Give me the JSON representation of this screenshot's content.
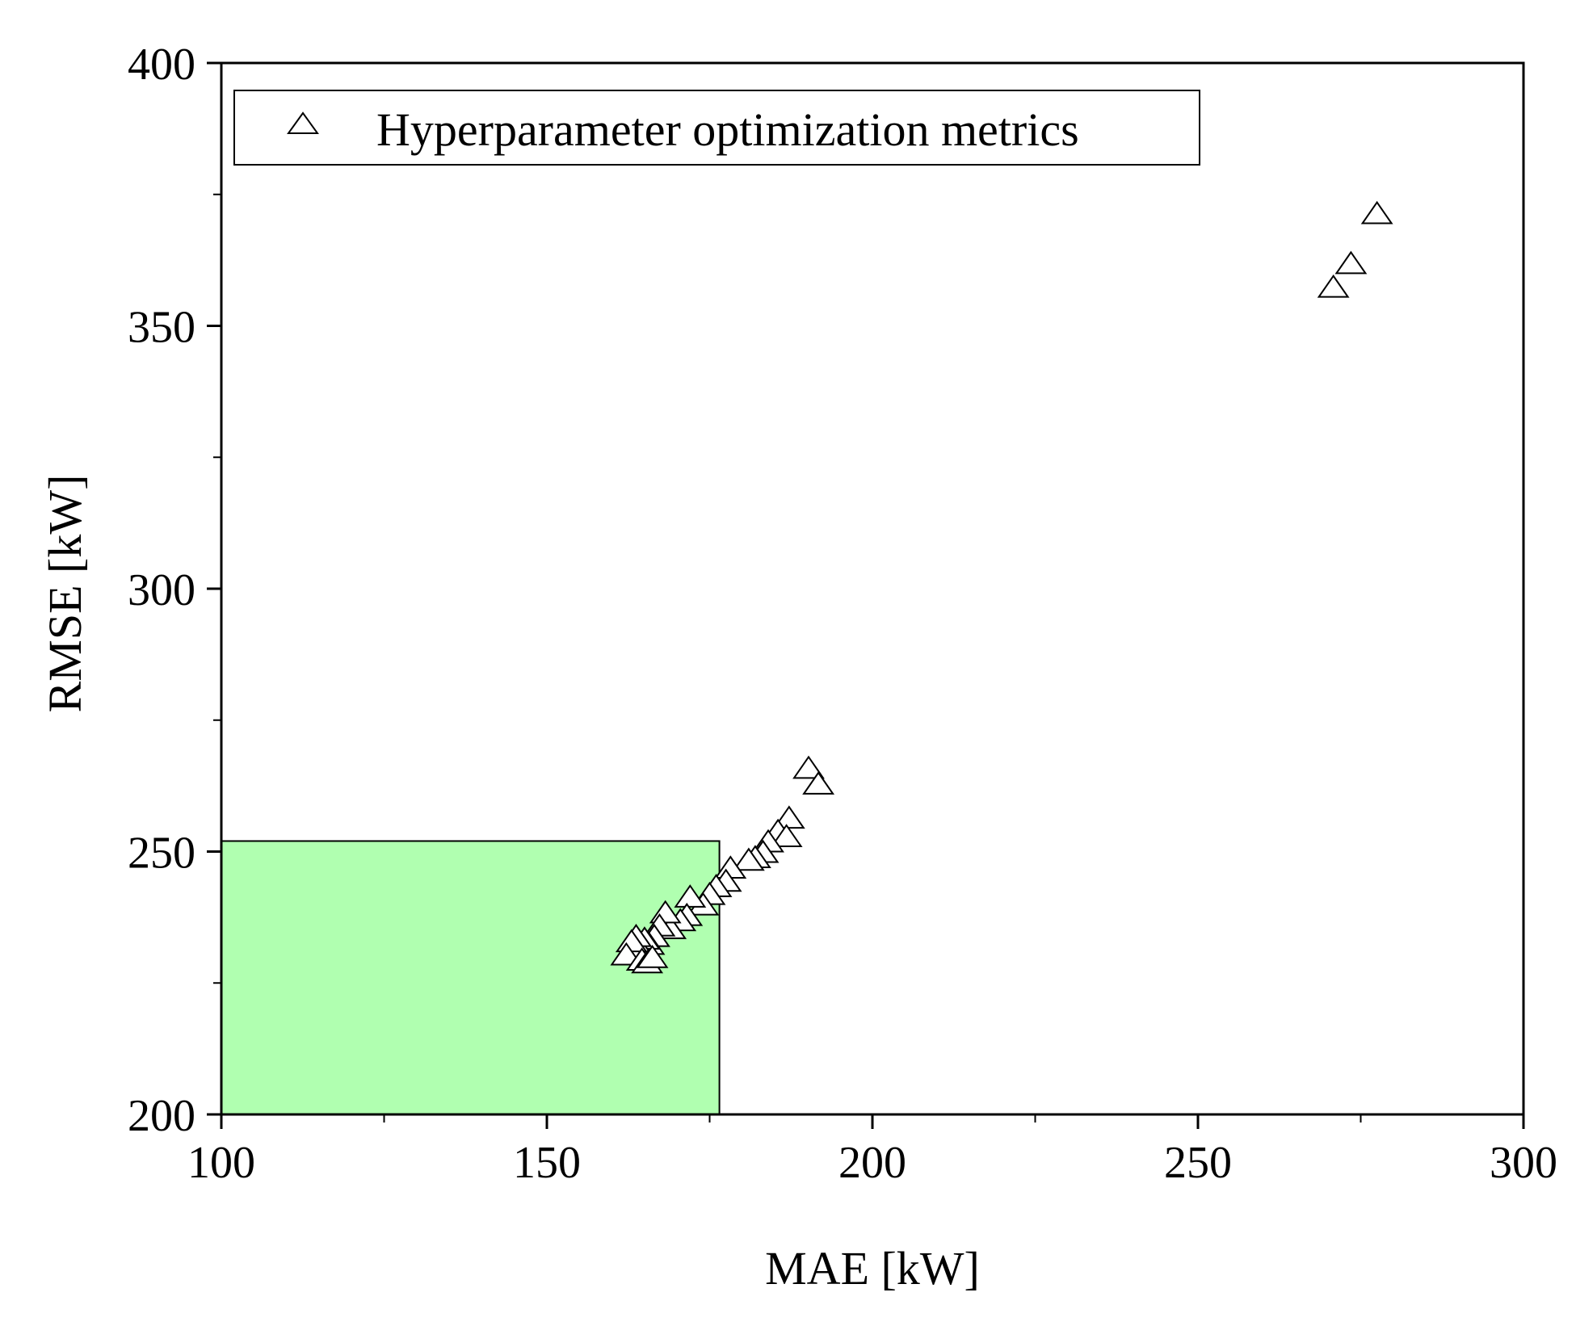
{
  "colors": {
    "axis": "#000000",
    "background": "#ffffff",
    "region_fill": "#b0ffb0",
    "marker_stroke": "#000000",
    "marker_fill": "#ffffff"
  },
  "chart_data": {
    "type": "scatter",
    "title": "",
    "xlabel": "MAE [kW]",
    "ylabel": "RMSE [kW]",
    "xlim": [
      100,
      300
    ],
    "ylim": [
      200,
      400
    ],
    "x_ticks": [
      100,
      150,
      200,
      250,
      300
    ],
    "x_tick_labels": [
      "100",
      "150",
      "200",
      "250",
      "300"
    ],
    "x_minor_ticks": [
      125,
      175,
      225,
      275
    ],
    "y_ticks": [
      200,
      250,
      300,
      350,
      400
    ],
    "y_tick_labels": [
      "200",
      "250",
      "300",
      "350",
      "400"
    ],
    "y_minor_ticks": [
      225,
      275,
      325,
      375
    ],
    "grid": false,
    "legend_position": "top-left",
    "highlight_region": {
      "x": [
        100,
        176.5
      ],
      "y": [
        200,
        252
      ]
    },
    "series": [
      {
        "name": "Hyperparameter optimization metrics",
        "marker": "triangle-open",
        "x": [
          277.5,
          273.5,
          270.8,
          190.2,
          191.7,
          187.2,
          185.5,
          186.8,
          184.0,
          183.2,
          182.0,
          181.0,
          178.2,
          177.5,
          176.0,
          175.0,
          174.0,
          172.0,
          171.5,
          170.5,
          169.0,
          168.2,
          167.3,
          166.5,
          165.7,
          165.0,
          164.3,
          163.7,
          163.0,
          162.2,
          164.6,
          165.4,
          166.2
        ],
        "y": [
          371.5,
          362.0,
          357.5,
          266.0,
          263.0,
          256.5,
          254.0,
          253.0,
          252.0,
          250.0,
          249.0,
          248.5,
          247.0,
          244.5,
          243.5,
          242.0,
          240.0,
          241.5,
          238.0,
          237.0,
          235.5,
          238.5,
          236.0,
          234.0,
          232.5,
          233.5,
          231.5,
          234.0,
          233.0,
          230.5,
          229.5,
          229.0,
          230.0
        ]
      }
    ]
  }
}
